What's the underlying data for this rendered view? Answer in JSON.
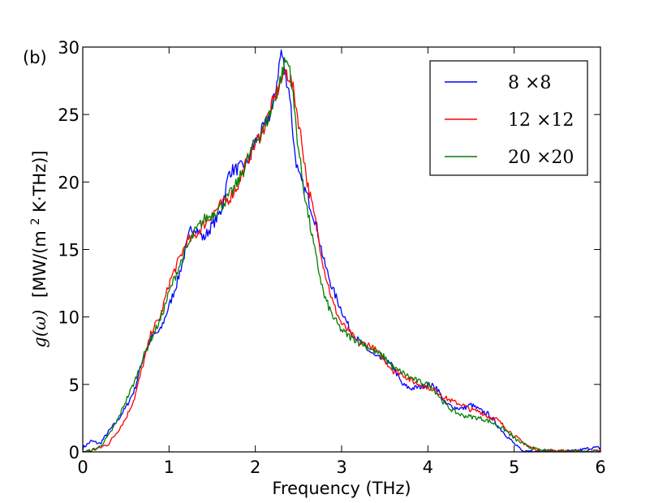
{
  "chart_data": {
    "type": "line",
    "panel_label": "(b)",
    "xlabel": "Frequency (THz)",
    "ylabel": {
      "symbol": "g(ω)",
      "units_open": "[MW/(m",
      "units_sup": "2",
      "units_close": "K·THz)]"
    },
    "xlim": [
      0,
      6
    ],
    "ylim": [
      0,
      30
    ],
    "xticks": [
      0,
      1,
      2,
      3,
      4,
      5,
      6
    ],
    "yticks": [
      0,
      5,
      10,
      15,
      20,
      25,
      30
    ],
    "xtick_labels": [
      "0",
      "1",
      "2",
      "3",
      "4",
      "5",
      "6"
    ],
    "ytick_labels": [
      "0",
      "5",
      "10",
      "15",
      "20",
      "25",
      "30"
    ],
    "grid": false,
    "legend_position": "top-right",
    "series": [
      {
        "name": "8 ×8",
        "color": "#0000ff",
        "x": [
          0.0,
          0.1,
          0.2,
          0.3,
          0.4,
          0.5,
          0.6,
          0.7,
          0.8,
          0.9,
          1.0,
          1.1,
          1.2,
          1.25,
          1.3,
          1.4,
          1.5,
          1.6,
          1.7,
          1.8,
          1.9,
          2.0,
          2.1,
          2.2,
          2.25,
          2.3,
          2.35,
          2.4,
          2.45,
          2.5,
          2.6,
          2.7,
          2.8,
          2.9,
          3.0,
          3.1,
          3.2,
          3.3,
          3.4,
          3.5,
          3.6,
          3.7,
          3.8,
          3.9,
          4.0,
          4.1,
          4.2,
          4.3,
          4.4,
          4.5,
          4.6,
          4.7,
          4.8,
          4.9,
          5.0,
          5.1,
          5.2,
          5.3,
          5.5,
          5.7,
          5.9,
          6.0
        ],
        "y": [
          0.3,
          0.8,
          0.6,
          1.5,
          2.3,
          3.3,
          4.6,
          7.0,
          8.5,
          9.0,
          10.8,
          12.7,
          15.2,
          16.5,
          16.7,
          15.8,
          16.8,
          17.8,
          20.8,
          21.0,
          21.3,
          23.0,
          24.0,
          25.5,
          27.5,
          29.7,
          28.0,
          26.5,
          22.5,
          20.5,
          19.0,
          17.0,
          14.0,
          12.0,
          10.5,
          9.0,
          8.2,
          7.6,
          7.0,
          6.8,
          6.3,
          5.0,
          4.7,
          4.8,
          5.0,
          4.8,
          3.6,
          3.3,
          3.2,
          3.5,
          3.1,
          2.8,
          2.0,
          1.3,
          0.6,
          0.0,
          0.1,
          0.05,
          0.05,
          0.05,
          0.3,
          0.3
        ]
      },
      {
        "name": "12 ×12",
        "color": "#ff0000",
        "x": [
          0.0,
          0.1,
          0.2,
          0.3,
          0.4,
          0.5,
          0.6,
          0.7,
          0.8,
          0.9,
          1.0,
          1.1,
          1.2,
          1.3,
          1.4,
          1.5,
          1.6,
          1.7,
          1.8,
          1.9,
          2.0,
          2.1,
          2.2,
          2.3,
          2.35,
          2.4,
          2.45,
          2.5,
          2.55,
          2.6,
          2.7,
          2.8,
          2.9,
          3.0,
          3.1,
          3.2,
          3.3,
          3.4,
          3.5,
          3.6,
          3.7,
          3.8,
          3.9,
          4.0,
          4.1,
          4.2,
          4.3,
          4.4,
          4.5,
          4.6,
          4.7,
          4.8,
          4.9,
          5.0,
          5.1,
          5.2,
          5.3,
          5.5,
          5.7,
          5.9,
          6.0
        ],
        "y": [
          0.0,
          0.1,
          0.3,
          0.6,
          1.5,
          2.5,
          4.0,
          6.5,
          9.0,
          10.0,
          12.5,
          14.0,
          15.5,
          16.0,
          16.8,
          17.6,
          18.3,
          18.8,
          19.8,
          21.5,
          22.8,
          24.0,
          25.8,
          27.5,
          28.2,
          27.8,
          26.5,
          24.5,
          22.5,
          20.0,
          17.0,
          13.5,
          11.0,
          9.5,
          8.8,
          8.0,
          8.0,
          7.5,
          6.8,
          6.0,
          5.8,
          5.3,
          5.0,
          4.8,
          4.5,
          4.0,
          3.7,
          3.5,
          3.1,
          3.0,
          2.6,
          2.4,
          1.8,
          1.2,
          0.7,
          0.3,
          0.1,
          0.1,
          0.0,
          0.05,
          0.1
        ]
      },
      {
        "name": "20 ×20",
        "color": "#008000",
        "x": [
          0.0,
          0.1,
          0.2,
          0.3,
          0.4,
          0.5,
          0.6,
          0.7,
          0.8,
          0.9,
          1.0,
          1.1,
          1.2,
          1.3,
          1.4,
          1.5,
          1.6,
          1.7,
          1.8,
          1.9,
          2.0,
          2.1,
          2.2,
          2.3,
          2.35,
          2.4,
          2.45,
          2.5,
          2.55,
          2.6,
          2.7,
          2.8,
          2.9,
          3.0,
          3.1,
          3.2,
          3.3,
          3.4,
          3.5,
          3.6,
          3.7,
          3.8,
          3.9,
          4.0,
          4.1,
          4.2,
          4.3,
          4.4,
          4.5,
          4.6,
          4.7,
          4.8,
          4.9,
          5.0,
          5.1,
          5.2,
          5.3,
          5.5,
          5.7,
          5.9,
          6.0
        ],
        "y": [
          0.0,
          0.1,
          0.4,
          1.2,
          2.3,
          3.8,
          5.2,
          7.0,
          8.5,
          9.8,
          11.8,
          13.5,
          15.0,
          16.3,
          17.2,
          17.6,
          18.2,
          19.0,
          20.0,
          21.5,
          23.0,
          24.0,
          25.5,
          27.8,
          29.0,
          28.5,
          25.5,
          22.5,
          20.0,
          18.0,
          14.5,
          11.5,
          10.0,
          9.0,
          8.5,
          8.2,
          7.8,
          7.4,
          7.0,
          6.2,
          5.9,
          5.5,
          5.2,
          5.0,
          4.4,
          3.5,
          3.0,
          2.7,
          2.6,
          2.5,
          2.3,
          2.0,
          1.6,
          1.0,
          0.6,
          0.3,
          0.1,
          0.0,
          0.1,
          0.0,
          0.1
        ]
      }
    ]
  }
}
